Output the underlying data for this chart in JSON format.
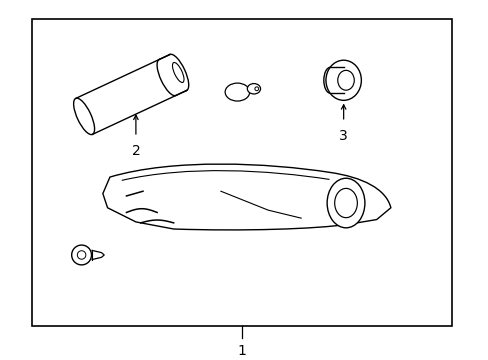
{
  "background_color": "#ffffff",
  "border_color": "#000000",
  "line_color": "#000000",
  "label_color": "#000000",
  "figsize": [
    4.89,
    3.6
  ],
  "dpi": 100,
  "border_lw": 1.2,
  "part_lw": 1.0
}
